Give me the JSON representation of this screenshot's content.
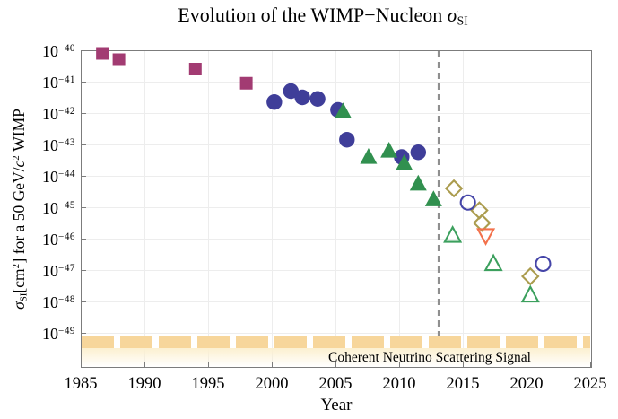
{
  "title": {
    "prefix": "Evolution of the WIMP−Nucleon ",
    "sigma": "σ",
    "sigma_sub": "SI"
  },
  "x_axis": {
    "label": "Year",
    "ticks": [
      "1985",
      "1990",
      "1995",
      "2000",
      "2005",
      "2010",
      "2015",
      "2020",
      "2025"
    ]
  },
  "y_axis": {
    "tick_base": "10",
    "tick_exponents": [
      "−40",
      "−41",
      "−42",
      "−43",
      "−44",
      "−45",
      "−46",
      "−47",
      "−48",
      "−49"
    ],
    "label_parts": {
      "sigma": "σ",
      "sigma_sub": "SI",
      "bracket_cm": "[cm",
      "cm_exp": "2",
      "mid": "] for a 50 GeV/",
      "c": "c",
      "c_exp": "2",
      "tail": " WIMP"
    }
  },
  "band_label": "Coherent Neutrino Scattering Signal",
  "style": {
    "frame_color": "#7c7c7c",
    "gridline_color": "#ededed",
    "vline_color": "#8f8f8f",
    "band_color": "#f7d69b",
    "band_fade_color": "#fcf0d0"
  },
  "chart_data": {
    "type": "scatter",
    "title": "Evolution of the WIMP−Nucleon σ_SI",
    "xlabel": "Year",
    "ylabel": "σ_SI [cm^2] for a 50 GeV/c^2 WIMP",
    "x_range": [
      1985,
      2025
    ],
    "y_scale": "log10",
    "y_tick_exponents": [
      -40,
      -41,
      -42,
      -43,
      -44,
      -45,
      -46,
      -47,
      -48,
      -49
    ],
    "grid": true,
    "vline": {
      "year": 2013.1,
      "style": "dashed",
      "color": "#8f8f8f"
    },
    "neutrino_floor_band": {
      "label": "Coherent Neutrino Scattering Signal",
      "log10_sigma": -49.3
    },
    "series": [
      {
        "name": "filled-maroon-squares",
        "marker": "square",
        "filled": true,
        "color": "#a23b72",
        "points": [
          [
            1986.7,
            -40.1
          ],
          [
            1988.0,
            -40.3
          ],
          [
            1994.0,
            -40.6
          ],
          [
            1998.0,
            -41.05
          ]
        ]
      },
      {
        "name": "filled-blue-circles",
        "marker": "circle",
        "filled": true,
        "color": "#3f3e99",
        "points": [
          [
            2000.2,
            -41.65
          ],
          [
            2001.5,
            -41.3
          ],
          [
            2002.4,
            -41.5
          ],
          [
            2003.6,
            -41.55
          ],
          [
            2005.2,
            -41.9
          ],
          [
            2005.9,
            -42.85
          ],
          [
            2010.2,
            -43.4
          ],
          [
            2011.5,
            -43.25
          ]
        ]
      },
      {
        "name": "filled-green-triangles",
        "marker": "triangle-up",
        "filled": true,
        "color": "#31904f",
        "points": [
          [
            2005.6,
            -41.95
          ],
          [
            2007.6,
            -43.4
          ],
          [
            2009.2,
            -43.2
          ],
          [
            2010.4,
            -43.6
          ],
          [
            2011.5,
            -44.25
          ],
          [
            2012.7,
            -44.75
          ]
        ]
      },
      {
        "name": "open-gold-diamonds",
        "marker": "diamond",
        "filled": false,
        "color": "#ab9c4e",
        "points": [
          [
            2014.3,
            -44.4
          ],
          [
            2016.3,
            -45.1
          ],
          [
            2016.5,
            -45.5
          ],
          [
            2020.3,
            -47.2
          ]
        ]
      },
      {
        "name": "open-blue-circles",
        "marker": "circle",
        "filled": false,
        "color": "#4545a8",
        "points": [
          [
            2015.4,
            -44.85
          ],
          [
            2021.3,
            -46.8
          ]
        ]
      },
      {
        "name": "open-green-triangles",
        "marker": "triangle-up",
        "filled": false,
        "color": "#3ca05e",
        "points": [
          [
            2014.2,
            -45.9
          ],
          [
            2017.4,
            -46.8
          ],
          [
            2020.3,
            -47.8
          ]
        ]
      },
      {
        "name": "open-orange-down-triangle",
        "marker": "triangle-down",
        "filled": false,
        "color": "#f3714b",
        "points": [
          [
            2016.8,
            -45.9
          ]
        ]
      }
    ]
  }
}
